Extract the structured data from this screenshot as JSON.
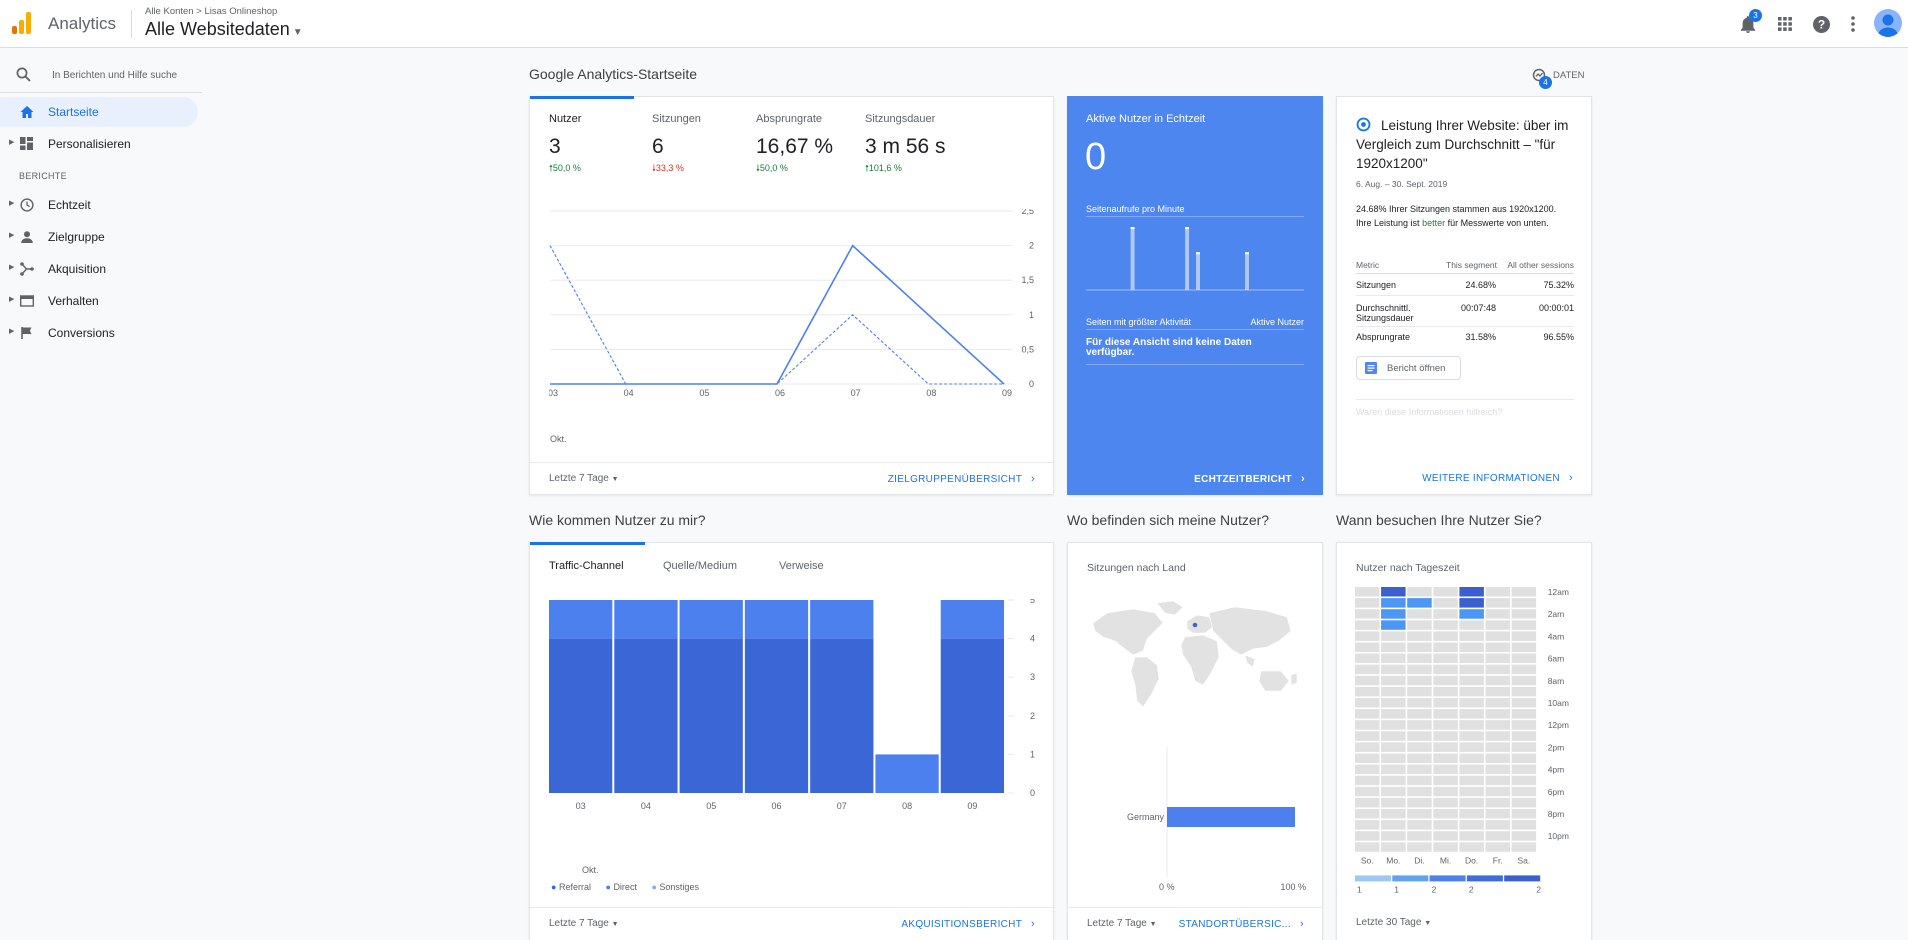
{
  "header": {
    "app_name": "Analytics",
    "breadcrumb_account": "Alle Konten",
    "breadcrumb_sep": ">",
    "breadcrumb_property": "Lisas Onlineshop",
    "view_name": "Alle Websitedaten",
    "notification_count": "3",
    "icons": [
      "notifications-icon",
      "apps-icon",
      "help-icon",
      "more-vert-icon",
      "account-avatar"
    ]
  },
  "sidebar": {
    "search_placeholder": "In Berichten und Hilfe suche",
    "home": "Startseite",
    "customize": "Personalisieren",
    "reports_header": "BERICHTE",
    "reports": [
      {
        "label": "Echtzeit",
        "icon": "clock-icon"
      },
      {
        "label": "Zielgruppe",
        "icon": "person-icon"
      },
      {
        "label": "Akquisition",
        "icon": "acquisition-icon"
      },
      {
        "label": "Verhalten",
        "icon": "behavior-icon"
      },
      {
        "label": "Conversions",
        "icon": "flag-icon"
      }
    ]
  },
  "main": {
    "page_title": "Google Analytics-Startseite",
    "data_button": "DATEN",
    "data_badge": "4"
  },
  "overview": {
    "metrics": [
      {
        "label": "Nutzer",
        "value": "3",
        "change": "50,0 %",
        "dir": "up"
      },
      {
        "label": "Sitzungen",
        "value": "6",
        "change": "33,3 %",
        "dir": "down"
      },
      {
        "label": "Absprungrate",
        "value": "16,67 %",
        "change": "50,0 %",
        "dir": "down"
      },
      {
        "label": "Sitzungsdauer",
        "value": "3 m 56 s",
        "change": "101,6 %",
        "dir": "up"
      }
    ],
    "date_range": "Letzte 7 Tage",
    "link": "ZIELGRUPPENÜBERSICHT",
    "x_sub": "Okt."
  },
  "realtime": {
    "title": "Aktive Nutzer in Echtzeit",
    "value": "0",
    "per_minute": "Seitenaufrufe pro Minute",
    "top_pages": "Seiten mit größter Aktivität",
    "active_users": "Aktive Nutzer",
    "no_data": "Für diese Ansicht sind keine Daten verfügbar.",
    "link": "ECHTZEITBERICHT",
    "bars": [
      0,
      0,
      0,
      0,
      0,
      0,
      0,
      0,
      1,
      0,
      0,
      0,
      0,
      0,
      0,
      0,
      0,
      0,
      1,
      0,
      0.6,
      0,
      0,
      0,
      0,
      0,
      0,
      0,
      0,
      0.6,
      0,
      0,
      0,
      0,
      0,
      0,
      0,
      0,
      0,
      0
    ]
  },
  "insight": {
    "title": "Leistung Ihrer Website: über im Vergleich zum Durchschnitt – \"für 1920x1200\"",
    "date": "6. Aug. – 30. Sept. 2019",
    "text_a": "24.68% Ihrer Sitzungen stammen aus 1920x1200. Ihre Leistung ist",
    "text_hl": "better",
    "text_b": "für Messwerte von unten.",
    "col_metric": "Metric",
    "col_segment": "This segment",
    "col_other": "All other sessions",
    "rows": [
      {
        "metric": "Sitzungen",
        "segment": "24.68%",
        "other": "75.32%"
      },
      {
        "metric": "Durchschnittl. Sitzungsdauer",
        "segment": "00:07:48",
        "other": "00:00:01"
      },
      {
        "metric": "Absprungrate",
        "segment": "31.58%",
        "other": "96.55%"
      }
    ],
    "open_report": "Bericht öffnen",
    "helpful": "Waren diese Informationen hilfreich?",
    "link": "WEITERE INFORMATIONEN"
  },
  "acquisition": {
    "section_title": "Wie kommen Nutzer zu mir?",
    "tabs": [
      "Traffic-Channel",
      "Quelle/Medium",
      "Verweise"
    ],
    "legend": [
      {
        "name": "Referral",
        "color": "#3b67d6"
      },
      {
        "name": "Direct",
        "color": "#4c80ee"
      },
      {
        "name": "Sonstiges",
        "color": "#87aaf7"
      }
    ],
    "date_range": "Letzte 7 Tage",
    "link": "AKQUISITIONSBERICHT",
    "x_sub": "Okt."
  },
  "geo": {
    "section_title": "Wo befinden sich meine Nutzer?",
    "subtitle": "Sitzungen nach Land",
    "country": "Germany",
    "axis_min": "0 %",
    "axis_max": "100 %",
    "date_range": "Letzte 7 Tage",
    "link": "STANDORTÜBERSIC..."
  },
  "time": {
    "section_title": "Wann besuchen Ihre Nutzer Sie?",
    "subtitle": "Nutzer nach Tageszeit",
    "days": [
      "So.",
      "Mo.",
      "Di.",
      "Mi.",
      "Do.",
      "Fr.",
      "Sa."
    ],
    "hours": [
      "12am",
      "2am",
      "4am",
      "6am",
      "8am",
      "10am",
      "12pm",
      "2pm",
      "4pm",
      "6pm",
      "8pm",
      "10pm"
    ],
    "legend_values": [
      "1",
      "1",
      "2",
      "2",
      "2"
    ],
    "date_range": "Letzte 30 Tage"
  },
  "colors": {
    "accent": "#1a73e8",
    "realtime_bg": "#4e86f0",
    "up": "#188038",
    "down": "#d93025"
  },
  "chart_data": [
    {
      "type": "line",
      "categories": [
        "03",
        "04",
        "05",
        "06",
        "07",
        "08",
        "09"
      ],
      "series": [
        {
          "name": "",
          "style": "solid",
          "values": [
            0,
            0,
            0,
            0,
            2,
            1,
            0
          ]
        },
        {
          "name": "",
          "style": "dashed",
          "values": [
            2,
            0,
            0,
            0,
            1,
            0,
            0
          ]
        }
      ],
      "yticks": [
        "0",
        "0,5",
        "1",
        "1,5",
        "2",
        "2,5"
      ],
      "ylim": [
        0,
        2.5
      ]
    },
    {
      "type": "bar",
      "stacked": true,
      "categories": [
        "03",
        "04",
        "05",
        "06",
        "07",
        "08",
        "09"
      ],
      "series": [
        {
          "name": "Referral",
          "values": [
            4,
            4,
            4,
            4,
            4,
            0,
            4
          ]
        },
        {
          "name": "Direct",
          "values": [
            1,
            1,
            1,
            1,
            1,
            1,
            1
          ]
        }
      ],
      "yticks": [
        "0",
        "1",
        "2",
        "3",
        "4",
        "5"
      ],
      "ylim": [
        0,
        5
      ]
    },
    {
      "type": "bar",
      "orientation": "horizontal",
      "categories": [
        "Germany"
      ],
      "values": [
        100
      ],
      "xlim": [
        0,
        100
      ]
    },
    {
      "type": "heatmap",
      "rows": [
        "12am",
        "1am",
        "2am",
        "3am",
        "4am",
        "5am",
        "6am",
        "7am",
        "8am",
        "9am",
        "10am",
        "11am",
        "12pm",
        "1pm",
        "2pm",
        "3pm",
        "4pm",
        "5pm",
        "6pm",
        "7pm",
        "8pm",
        "9pm",
        "10pm",
        "11pm"
      ],
      "columns": [
        "So.",
        "Mo.",
        "Di.",
        "Mi.",
        "Do.",
        "Fr.",
        "Sa."
      ],
      "cells": [
        {
          "row": 0,
          "col": 1,
          "value": 2
        },
        {
          "row": 0,
          "col": 4,
          "value": 2
        },
        {
          "row": 1,
          "col": 1,
          "value": 1
        },
        {
          "row": 1,
          "col": 2,
          "value": 1
        },
        {
          "row": 1,
          "col": 4,
          "value": 2
        },
        {
          "row": 2,
          "col": 1,
          "value": 1
        },
        {
          "row": 2,
          "col": 4,
          "value": 1
        },
        {
          "row": 3,
          "col": 1,
          "value": 1
        }
      ]
    }
  ]
}
